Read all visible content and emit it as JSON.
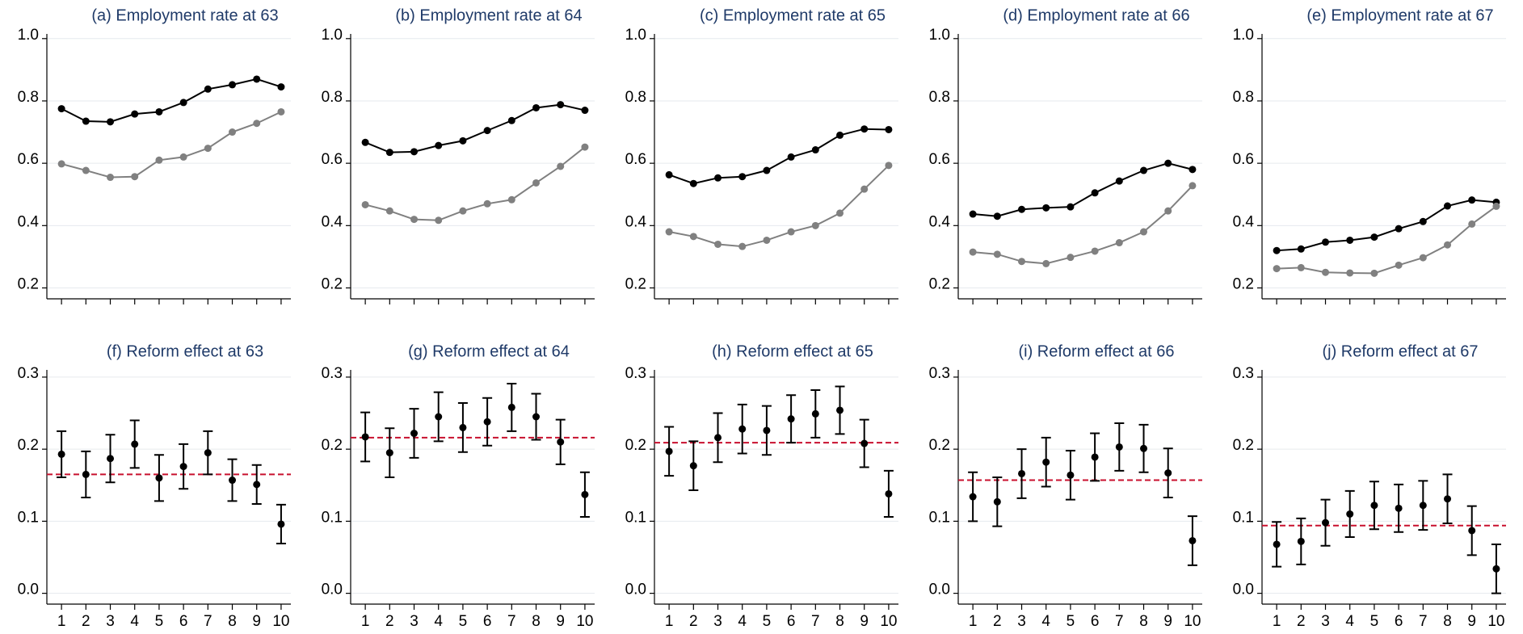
{
  "chart_data": [
    {
      "type": "line",
      "title": "(a) Employment rate at 63",
      "x": [
        1,
        2,
        3,
        4,
        5,
        6,
        7,
        8,
        9,
        10
      ],
      "xlim": [
        0.4,
        10.4
      ],
      "xticks": [
        1,
        2,
        3,
        4,
        5,
        6,
        7,
        8,
        9,
        10
      ],
      "show_xtick_labels": false,
      "ylim": [
        0.165,
        1.015
      ],
      "yticks": [
        0.2,
        0.4,
        0.6,
        0.8,
        {
          "value": 1,
          "label": "1.0"
        }
      ],
      "grid": true,
      "series": [
        {
          "color": "#000000",
          "values": [
            0.775,
            0.735,
            0.733,
            0.758,
            0.765,
            0.795,
            0.838,
            0.852,
            0.87,
            0.845
          ]
        },
        {
          "color": "#808080",
          "values": [
            0.598,
            0.577,
            0.555,
            0.557,
            0.61,
            0.62,
            0.648,
            0.7,
            0.728,
            0.765
          ]
        }
      ]
    },
    {
      "type": "line",
      "title": "(b) Employment rate at 64",
      "x": [
        1,
        2,
        3,
        4,
        5,
        6,
        7,
        8,
        9,
        10
      ],
      "xlim": [
        0.4,
        10.4
      ],
      "xticks": [
        1,
        2,
        3,
        4,
        5,
        6,
        7,
        8,
        9,
        10
      ],
      "show_xtick_labels": false,
      "ylim": [
        0.165,
        1.015
      ],
      "yticks": [
        0.2,
        0.4,
        0.6,
        0.8,
        {
          "value": 1,
          "label": "1.0"
        }
      ],
      "grid": true,
      "series": [
        {
          "color": "#000000",
          "values": [
            0.667,
            0.635,
            0.637,
            0.657,
            0.672,
            0.705,
            0.737,
            0.778,
            0.788,
            0.77
          ]
        },
        {
          "color": "#808080",
          "values": [
            0.467,
            0.447,
            0.42,
            0.417,
            0.447,
            0.47,
            0.483,
            0.537,
            0.59,
            0.652
          ]
        }
      ]
    },
    {
      "type": "line",
      "title": "(c) Employment rate at 65",
      "x": [
        1,
        2,
        3,
        4,
        5,
        6,
        7,
        8,
        9,
        10
      ],
      "xlim": [
        0.4,
        10.4
      ],
      "xticks": [
        1,
        2,
        3,
        4,
        5,
        6,
        7,
        8,
        9,
        10
      ],
      "show_xtick_labels": false,
      "ylim": [
        0.165,
        1.015
      ],
      "yticks": [
        0.2,
        0.4,
        0.6,
        0.8,
        {
          "value": 1,
          "label": "1.0"
        }
      ],
      "grid": true,
      "series": [
        {
          "color": "#000000",
          "values": [
            0.563,
            0.535,
            0.553,
            0.557,
            0.577,
            0.62,
            0.643,
            0.69,
            0.71,
            0.708
          ]
        },
        {
          "color": "#808080",
          "values": [
            0.38,
            0.365,
            0.34,
            0.333,
            0.353,
            0.38,
            0.4,
            0.44,
            0.517,
            0.593
          ]
        }
      ]
    },
    {
      "type": "line",
      "title": "(d) Employment rate at 66",
      "x": [
        1,
        2,
        3,
        4,
        5,
        6,
        7,
        8,
        9,
        10
      ],
      "xlim": [
        0.4,
        10.4
      ],
      "xticks": [
        1,
        2,
        3,
        4,
        5,
        6,
        7,
        8,
        9,
        10
      ],
      "show_xtick_labels": false,
      "ylim": [
        0.165,
        1.015
      ],
      "yticks": [
        0.2,
        0.4,
        0.6,
        0.8,
        {
          "value": 1,
          "label": "1.0"
        }
      ],
      "grid": true,
      "series": [
        {
          "color": "#000000",
          "values": [
            0.437,
            0.43,
            0.452,
            0.457,
            0.46,
            0.505,
            0.543,
            0.577,
            0.6,
            0.58
          ]
        },
        {
          "color": "#808080",
          "values": [
            0.315,
            0.308,
            0.285,
            0.278,
            0.298,
            0.318,
            0.345,
            0.38,
            0.447,
            0.528
          ]
        }
      ]
    },
    {
      "type": "line",
      "title": "(e) Employment rate at 67",
      "x": [
        1,
        2,
        3,
        4,
        5,
        6,
        7,
        8,
        9,
        10
      ],
      "xlim": [
        0.4,
        10.4
      ],
      "xticks": [
        1,
        2,
        3,
        4,
        5,
        6,
        7,
        8,
        9,
        10
      ],
      "show_xtick_labels": false,
      "ylim": [
        0.165,
        1.015
      ],
      "yticks": [
        0.2,
        0.4,
        0.6,
        0.8,
        {
          "value": 1,
          "label": "1.0"
        }
      ],
      "grid": true,
      "series": [
        {
          "color": "#000000",
          "values": [
            0.32,
            0.325,
            0.347,
            0.353,
            0.363,
            0.39,
            0.413,
            0.463,
            0.482,
            0.475
          ]
        },
        {
          "color": "#808080",
          "values": [
            0.262,
            0.265,
            0.25,
            0.248,
            0.247,
            0.273,
            0.297,
            0.338,
            0.405,
            0.462
          ]
        }
      ]
    },
    {
      "type": "errorbar",
      "title": "(f) Reform effect at 63",
      "x": [
        1,
        2,
        3,
        4,
        5,
        6,
        7,
        8,
        9,
        10
      ],
      "xlim": [
        0.4,
        10.4
      ],
      "xticks": [
        1,
        2,
        3,
        4,
        5,
        6,
        7,
        8,
        9,
        10
      ],
      "show_xtick_labels": true,
      "ylim": [
        -0.015,
        0.31
      ],
      "yticks": [
        {
          "value": 0,
          "label": "0.0"
        },
        0.1,
        0.2,
        0.3
      ],
      "grid": true,
      "color": "#000000",
      "values": [
        0.193,
        0.165,
        0.187,
        0.207,
        0.16,
        0.176,
        0.195,
        0.157,
        0.151,
        0.096
      ],
      "errors": [
        0.032,
        0.032,
        0.033,
        0.033,
        0.032,
        0.031,
        0.03,
        0.029,
        0.027,
        0.027
      ],
      "reference_line": {
        "value": 0.165,
        "color": "#c8102e"
      }
    },
    {
      "type": "errorbar",
      "title": "(g) Reform effect at 64",
      "x": [
        1,
        2,
        3,
        4,
        5,
        6,
        7,
        8,
        9,
        10
      ],
      "xlim": [
        0.4,
        10.4
      ],
      "xticks": [
        1,
        2,
        3,
        4,
        5,
        6,
        7,
        8,
        9,
        10
      ],
      "show_xtick_labels": true,
      "ylim": [
        -0.015,
        0.31
      ],
      "yticks": [
        {
          "value": 0,
          "label": "0.0"
        },
        0.1,
        0.2,
        0.3
      ],
      "grid": true,
      "color": "#000000",
      "values": [
        0.217,
        0.195,
        0.222,
        0.245,
        0.23,
        0.238,
        0.258,
        0.245,
        0.21,
        0.137
      ],
      "errors": [
        0.034,
        0.034,
        0.034,
        0.034,
        0.034,
        0.033,
        0.033,
        0.032,
        0.031,
        0.031
      ],
      "reference_line": {
        "value": 0.216,
        "color": "#c8102e"
      }
    },
    {
      "type": "errorbar",
      "title": "(h) Reform effect at 65",
      "x": [
        1,
        2,
        3,
        4,
        5,
        6,
        7,
        8,
        9,
        10
      ],
      "xlim": [
        0.4,
        10.4
      ],
      "xticks": [
        1,
        2,
        3,
        4,
        5,
        6,
        7,
        8,
        9,
        10
      ],
      "show_xtick_labels": true,
      "ylim": [
        -0.015,
        0.31
      ],
      "yticks": [
        {
          "value": 0,
          "label": "0.0"
        },
        0.1,
        0.2,
        0.3
      ],
      "grid": true,
      "color": "#000000",
      "values": [
        0.197,
        0.177,
        0.216,
        0.228,
        0.226,
        0.242,
        0.249,
        0.254,
        0.208,
        0.138
      ],
      "errors": [
        0.034,
        0.034,
        0.034,
        0.034,
        0.034,
        0.033,
        0.033,
        0.033,
        0.033,
        0.032
      ],
      "reference_line": {
        "value": 0.209,
        "color": "#c8102e"
      }
    },
    {
      "type": "errorbar",
      "title": "(i) Reform effect at 66",
      "x": [
        1,
        2,
        3,
        4,
        5,
        6,
        7,
        8,
        9,
        10
      ],
      "xlim": [
        0.4,
        10.4
      ],
      "xticks": [
        1,
        2,
        3,
        4,
        5,
        6,
        7,
        8,
        9,
        10
      ],
      "show_xtick_labels": true,
      "ylim": [
        -0.015,
        0.31
      ],
      "yticks": [
        {
          "value": 0,
          "label": "0.0"
        },
        0.1,
        0.2,
        0.3
      ],
      "grid": true,
      "color": "#000000",
      "values": [
        0.134,
        0.127,
        0.166,
        0.182,
        0.164,
        0.189,
        0.203,
        0.201,
        0.167,
        0.073
      ],
      "errors": [
        0.034,
        0.034,
        0.034,
        0.034,
        0.034,
        0.033,
        0.033,
        0.033,
        0.034,
        0.034
      ],
      "reference_line": {
        "value": 0.157,
        "color": "#c8102e"
      }
    },
    {
      "type": "errorbar",
      "title": "(j) Reform effect at 67",
      "x": [
        1,
        2,
        3,
        4,
        5,
        6,
        7,
        8,
        9,
        10
      ],
      "xlim": [
        0.4,
        10.4
      ],
      "xticks": [
        1,
        2,
        3,
        4,
        5,
        6,
        7,
        8,
        9,
        10
      ],
      "show_xtick_labels": true,
      "ylim": [
        -0.015,
        0.31
      ],
      "yticks": [
        {
          "value": 0,
          "label": "0.0"
        },
        0.1,
        0.2,
        0.3
      ],
      "grid": true,
      "color": "#000000",
      "values": [
        0.068,
        0.072,
        0.098,
        0.11,
        0.122,
        0.118,
        0.122,
        0.131,
        0.087,
        0.034
      ],
      "errors": [
        0.031,
        0.032,
        0.032,
        0.032,
        0.033,
        0.033,
        0.034,
        0.034,
        0.034,
        0.034
      ],
      "reference_line": {
        "value": 0.094,
        "color": "#c8102e"
      }
    }
  ]
}
